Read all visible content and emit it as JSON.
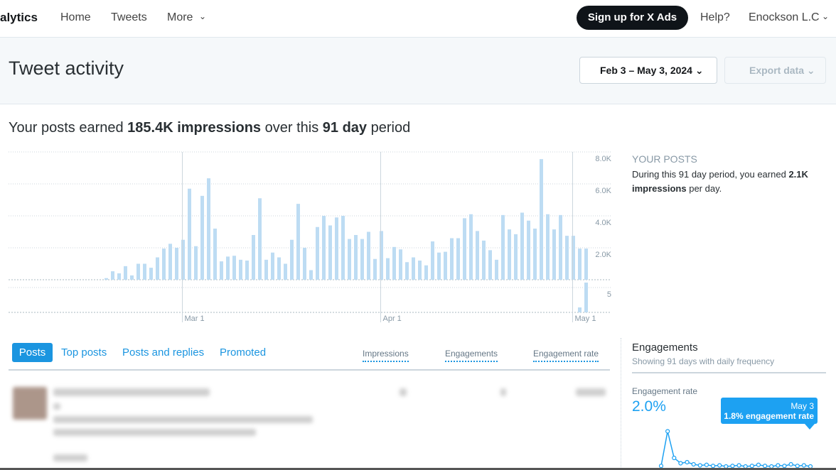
{
  "nav": {
    "brand": "alytics",
    "links": [
      "Home",
      "Tweets",
      "More"
    ],
    "ads_button": "Sign up for X Ads",
    "help": "Help?",
    "account": "Enockson L.C"
  },
  "header": {
    "title": "Tweet activity",
    "date_range": "Feb 3 – May 3, 2024",
    "export": "Export data"
  },
  "summary": {
    "prefix": "Your posts earned",
    "impressions": "185.4K impressions",
    "middle": "over this",
    "days": "91 day",
    "suffix": "period"
  },
  "impressions_chart": {
    "type": "bar",
    "color": "#bddcf3",
    "categories": [
      null,
      null,
      null,
      null,
      null,
      null,
      null,
      null,
      null,
      null,
      null,
      null,
      null,
      null,
      null,
      null,
      null,
      null,
      null,
      null,
      null,
      null,
      null,
      null,
      null,
      null,
      null,
      "Mar 1",
      null,
      null,
      null,
      null,
      null,
      null,
      null,
      null,
      null,
      null,
      null,
      null,
      null,
      null,
      null,
      null,
      null,
      null,
      null,
      null,
      null,
      null,
      null,
      null,
      null,
      null,
      null,
      null,
      null,
      null,
      "Apr 1",
      null,
      null,
      null,
      null,
      null,
      null,
      null,
      null,
      null,
      null,
      null,
      null,
      null,
      null,
      null,
      null,
      null,
      null,
      null,
      null,
      null,
      null,
      null,
      null,
      null,
      null,
      null,
      null,
      null,
      "May 1",
      null,
      null
    ],
    "values": [
      0,
      0,
      0,
      0,
      0,
      0,
      0,
      0,
      0,
      0,
      0,
      0,
      0,
      0,
      0,
      100,
      530,
      400,
      850,
      270,
      1000,
      1000,
      750,
      1400,
      1950,
      2250,
      2000,
      2500,
      5700,
      2100,
      5250,
      6350,
      3200,
      1150,
      1450,
      1500,
      1250,
      1200,
      2800,
      5100,
      1250,
      1700,
      1400,
      1000,
      2500,
      4750,
      2000,
      600,
      3300,
      4000,
      3400,
      3900,
      4000,
      2550,
      2800,
      2550,
      3000,
      1300,
      3050,
      1350,
      2050,
      1900,
      1100,
      1400,
      1200,
      900,
      2400,
      1700,
      1750,
      2600,
      2600,
      3850,
      4100,
      3050,
      2450,
      1850,
      1250,
      4050,
      3150,
      2850,
      4200,
      3700,
      3200,
      7550,
      4100,
      3150,
      4050,
      2750,
      2750,
      1950,
      1950
    ],
    "ylim": [
      0,
      8000
    ],
    "yticks": [
      {
        "value": 2000,
        "label": "2.0K"
      },
      {
        "value": 4000,
        "label": "4.0K"
      },
      {
        "value": 6000,
        "label": "6.0K"
      },
      {
        "value": 8000,
        "label": "8.0K"
      }
    ]
  },
  "promoted_chart": {
    "type": "bar",
    "color": "#bddcf3",
    "values": [
      0,
      0,
      0,
      0,
      0,
      0,
      0,
      0,
      0,
      0,
      0,
      0,
      0,
      0,
      0,
      0,
      0,
      0,
      0,
      0,
      0,
      0,
      0,
      0,
      0,
      0,
      0,
      0,
      0,
      0,
      0,
      0,
      0,
      0,
      0,
      0,
      0,
      0,
      0,
      0,
      0,
      0,
      0,
      0,
      0,
      0,
      0,
      0,
      0,
      0,
      0,
      0,
      0,
      0,
      0,
      0,
      0,
      0,
      0,
      0,
      0,
      0,
      0,
      0,
      0,
      0,
      0,
      0,
      0,
      0,
      0,
      0,
      0,
      0,
      0,
      0,
      0,
      0,
      0,
      0,
      0,
      0,
      0,
      0,
      0,
      0,
      0,
      0,
      0,
      1,
      6
    ],
    "ylim": [
      0,
      6
    ],
    "yticks": [
      5
    ]
  },
  "side": {
    "heading": "YOUR POSTS",
    "text_prefix": "During this 91 day period, you earned",
    "highlight": "2.1K impressions",
    "text_suffix": "per day."
  },
  "tabs": [
    "Posts",
    "Top posts",
    "Posts and replies",
    "Promoted"
  ],
  "columns": [
    "Impressions",
    "Engagements",
    "Engagement rate"
  ],
  "engagements": {
    "title": "Engagements",
    "subtitle": "Showing 91 days with daily frequency",
    "metric": "Engagement rate",
    "value": "2.0%",
    "tooltip": {
      "date": "May 3",
      "text": "1.8% engagement rate"
    },
    "chart": {
      "type": "line",
      "color": "#1da1f2",
      "values": [
        0.5,
        7,
        2,
        1,
        1.2,
        0.8,
        0.6,
        0.7,
        0.5,
        0.6,
        0.4,
        0.5,
        0.6,
        0.4,
        0.5,
        0.7,
        0.5,
        0.4,
        0.6,
        0.5,
        0.8,
        0.5,
        0.6,
        0.4
      ],
      "ylim": [
        0,
        8
      ]
    }
  }
}
